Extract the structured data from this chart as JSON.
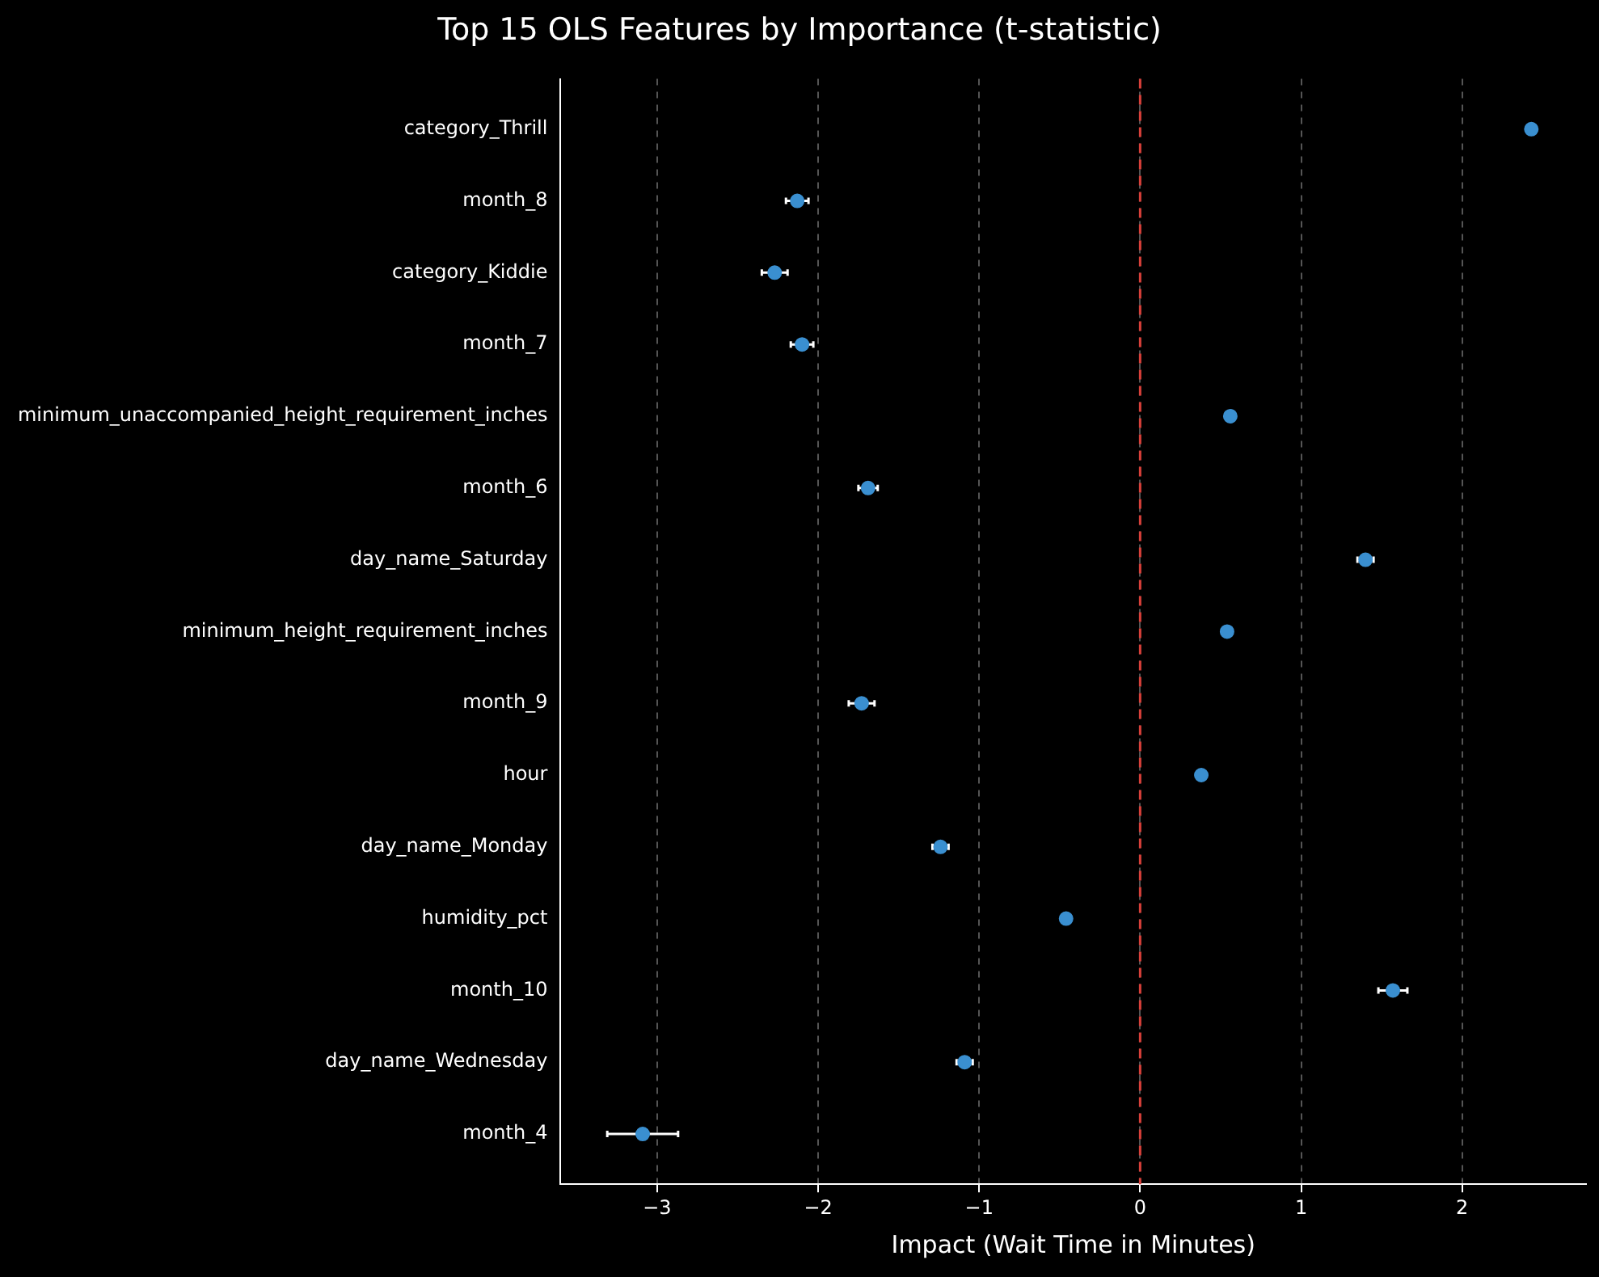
{
  "chart_data": {
    "type": "scatter",
    "title": "Top 15 OLS Features by Importance (t-statistic)",
    "xlabel": "Impact (Wait Time in Minutes)",
    "orientation": "horizontal",
    "categories": [
      "category_Thrill",
      "month_8",
      "category_Kiddie",
      "month_7",
      "minimum_unaccompanied_height_requirement_inches",
      "month_6",
      "day_name_Saturday",
      "minimum_height_requirement_inches",
      "month_9",
      "hour",
      "day_name_Monday",
      "humidity_pct",
      "month_10",
      "day_name_Wednesday",
      "month_4"
    ],
    "values": [
      2.43,
      -2.13,
      -2.27,
      -2.1,
      0.56,
      -1.69,
      1.4,
      0.54,
      -1.73,
      0.38,
      -1.24,
      -0.46,
      1.57,
      -1.09,
      -3.09
    ],
    "errors": [
      null,
      0.07,
      0.08,
      0.07,
      null,
      0.06,
      0.05,
      null,
      0.08,
      null,
      0.05,
      null,
      0.09,
      0.05,
      0.22
    ],
    "color": "#3a8fd0",
    "marker": "circle",
    "xlim": [
      -3.6,
      2.77
    ],
    "xticks": [
      -3,
      -2,
      -1,
      0,
      1,
      2
    ],
    "ref_lines": [
      {
        "axis": "x",
        "value": 0,
        "color": "#d9403a",
        "line_style": "dashed"
      }
    ],
    "grid": "x",
    "legend": false
  }
}
